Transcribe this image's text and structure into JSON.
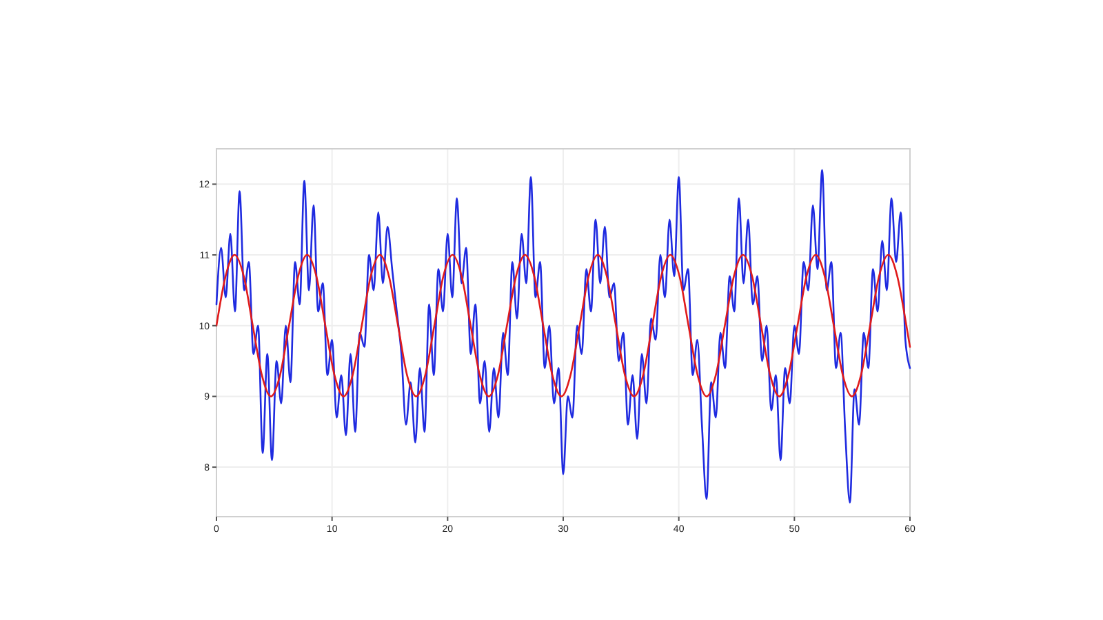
{
  "chart_data": {
    "type": "line",
    "xlim": [
      0,
      60
    ],
    "ylim": [
      7.3,
      12.5
    ],
    "xticks": [
      0,
      10,
      20,
      30,
      40,
      50,
      60
    ],
    "yticks": [
      8,
      9,
      10,
      11,
      12
    ],
    "grid": true,
    "line_style": "solid",
    "series": [
      {
        "color": "#1f2be0",
        "x": [
          0,
          0.4,
          0.8,
          1.2,
          1.6,
          2,
          2.4,
          2.8,
          3.2,
          3.6,
          4,
          4.4,
          4.8,
          5.2,
          5.6,
          6,
          6.4,
          6.8,
          7.2,
          7.6,
          8,
          8.4,
          8.8,
          9.2,
          9.6,
          10,
          10.4,
          10.8,
          11.2,
          11.6,
          12,
          12.4,
          12.8,
          13.2,
          13.6,
          14,
          14.4,
          14.8,
          15.2,
          15.6,
          16,
          16.4,
          16.8,
          17.2,
          17.6,
          18,
          18.4,
          18.8,
          19.2,
          19.6,
          20,
          20.4,
          20.8,
          21.2,
          21.6,
          22,
          22.4,
          22.8,
          23.2,
          23.6,
          24,
          24.4,
          24.8,
          25.2,
          25.6,
          26,
          26.4,
          26.8,
          27.2,
          27.6,
          28,
          28.4,
          28.8,
          29.2,
          29.6,
          30,
          30.4,
          30.8,
          31.2,
          31.6,
          32,
          32.4,
          32.8,
          33.2,
          33.6,
          34,
          34.4,
          34.8,
          35.2,
          35.6,
          36,
          36.4,
          36.8,
          37.2,
          37.6,
          38,
          38.4,
          38.8,
          39.2,
          39.6,
          40,
          40.4,
          40.8,
          41.2,
          41.6,
          42,
          42.4,
          42.8,
          43.2,
          43.6,
          44,
          44.4,
          44.8,
          45.2,
          45.6,
          46,
          46.4,
          46.8,
          47.2,
          47.6,
          48,
          48.4,
          48.8,
          49.2,
          49.6,
          50,
          50.4,
          50.8,
          51.2,
          51.6,
          52,
          52.4,
          52.8,
          53.2,
          53.6,
          54,
          54.4,
          54.8,
          55.2,
          55.6,
          56,
          56.4,
          56.8,
          57.2,
          57.6,
          58,
          58.4,
          58.8,
          59.2,
          59.6,
          60
        ],
        "values": [
          10.3,
          11.1,
          10.4,
          11.3,
          10.2,
          11.9,
          10.5,
          10.9,
          9.6,
          10,
          8.2,
          9.6,
          8.1,
          9.5,
          8.9,
          10,
          9.2,
          10.9,
          10.3,
          12.05,
          10.5,
          11.7,
          10.2,
          10.6,
          9.3,
          9.8,
          8.7,
          9.3,
          8.45,
          9.6,
          8.5,
          9.9,
          9.7,
          11,
          10.5,
          11.6,
          10.6,
          11.4,
          10.8,
          10.2,
          9.6,
          8.6,
          9.2,
          8.35,
          9.4,
          8.5,
          10.3,
          9.3,
          10.8,
          10.2,
          11.3,
          10.4,
          11.8,
          10.6,
          11.1,
          9.6,
          10.3,
          8.9,
          9.5,
          8.5,
          9.4,
          8.7,
          9.9,
          9.3,
          10.9,
          10.1,
          11.3,
          10.6,
          12.1,
          10.4,
          10.9,
          9.4,
          10,
          8.9,
          9.4,
          7.9,
          9,
          8.7,
          10,
          9.6,
          10.8,
          10.2,
          11.5,
          10.6,
          11.4,
          10.4,
          10.6,
          9.5,
          9.9,
          8.6,
          9.3,
          8.4,
          9.6,
          8.9,
          10.1,
          9.8,
          11,
          10.4,
          11.5,
          10.7,
          12.1,
          10.5,
          10.8,
          9.3,
          9.8,
          8.6,
          7.55,
          9.2,
          8.7,
          9.9,
          9.4,
          10.7,
          10.2,
          11.8,
          10.6,
          11.5,
          10.3,
          10.7,
          9.5,
          10,
          8.8,
          9.3,
          8.1,
          9.4,
          8.9,
          10,
          9.6,
          10.9,
          10.5,
          11.7,
          10.8,
          12.2,
          10.5,
          10.9,
          9.4,
          9.9,
          8.5,
          7.5,
          9.1,
          8.6,
          9.9,
          9.4,
          10.8,
          10.2,
          11.2,
          10.5,
          11.8,
          10.9,
          11.6,
          9.8,
          9.4
        ]
      },
      {
        "color": "#e01b1b",
        "x": [
          0,
          0.79,
          1.57,
          2.36,
          3.14,
          3.93,
          4.71,
          5.5,
          6.28,
          7.07,
          7.85,
          8.64,
          9.42,
          10.21,
          10.99,
          11.78,
          12.57,
          13.35,
          14.14,
          14.92,
          15.71,
          16.49,
          17.28,
          18.06,
          18.85,
          19.63,
          20.42,
          21.21,
          21.99,
          22.78,
          23.56,
          24.35,
          25.13,
          25.92,
          26.7,
          27.49,
          28.27,
          29.06,
          29.85,
          30.63,
          31.42,
          32.2,
          32.99,
          33.77,
          34.56,
          35.34,
          36.13,
          36.91,
          37.7,
          38.48,
          39.27,
          40.06,
          40.84,
          41.63,
          42.41,
          43.2,
          43.98,
          44.77,
          45.55,
          46.34,
          47.12,
          47.91,
          48.69,
          49.48,
          50.27,
          51.05,
          51.84,
          52.62,
          53.41,
          54.19,
          54.98,
          55.76,
          56.55,
          57.33,
          58.12,
          58.9,
          59.69,
          60
        ],
        "values": [
          10,
          10.7,
          11,
          10.7,
          10,
          9.3,
          9,
          9.3,
          10,
          10.7,
          11,
          10.7,
          10,
          9.3,
          9,
          9.3,
          10,
          10.7,
          11,
          10.7,
          10,
          9.3,
          9,
          9.3,
          10,
          10.7,
          11,
          10.7,
          10,
          9.3,
          9,
          9.3,
          10,
          10.7,
          11,
          10.7,
          10,
          9.3,
          9,
          9.3,
          10,
          10.7,
          11,
          10.7,
          10,
          9.3,
          9,
          9.3,
          10,
          10.7,
          11,
          10.7,
          10,
          9.3,
          9,
          9.3,
          10,
          10.7,
          11,
          10.7,
          10,
          9.3,
          9,
          9.3,
          10,
          10.7,
          11,
          10.7,
          10,
          9.3,
          9,
          9.3,
          10,
          10.7,
          11,
          10.7,
          10,
          9.7
        ]
      }
    ]
  }
}
